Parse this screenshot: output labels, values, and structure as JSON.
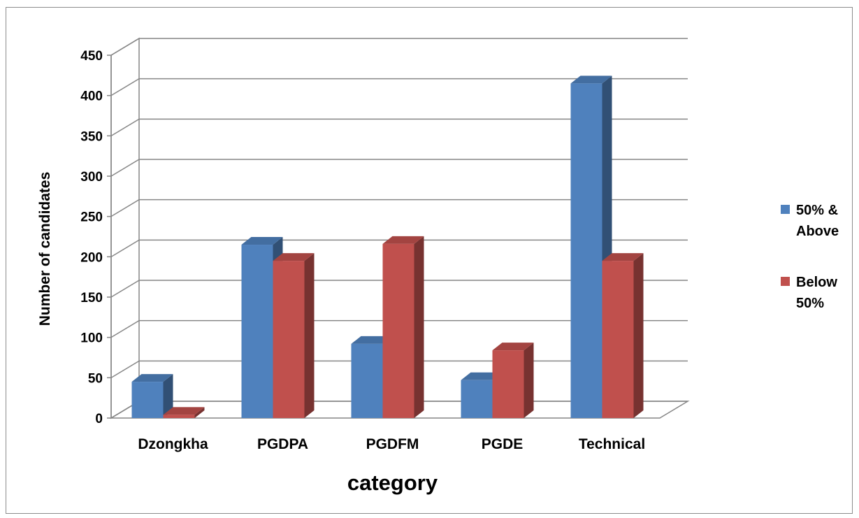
{
  "chart_data": {
    "type": "bar",
    "title": "",
    "xlabel": "category",
    "ylabel": "Number of candidates",
    "categories": [
      "Dzongkha",
      "PGDPA",
      "PGDFM",
      "PGDE",
      "Technical"
    ],
    "series": [
      {
        "name_lines": [
          "50% &",
          "Above"
        ],
        "color": "#4f81bd",
        "values": [
          45,
          215,
          92,
          47,
          415
        ]
      },
      {
        "name_lines": [
          "Below",
          "50%"
        ],
        "color": "#c0504d",
        "values": [
          4,
          195,
          216,
          84,
          195
        ]
      }
    ],
    "ylim": [
      0,
      450
    ],
    "yticks": [
      0,
      50,
      100,
      150,
      200,
      250,
      300,
      350,
      400,
      450
    ],
    "grid": true,
    "legend": "right",
    "style": "3d-clustered-column"
  }
}
